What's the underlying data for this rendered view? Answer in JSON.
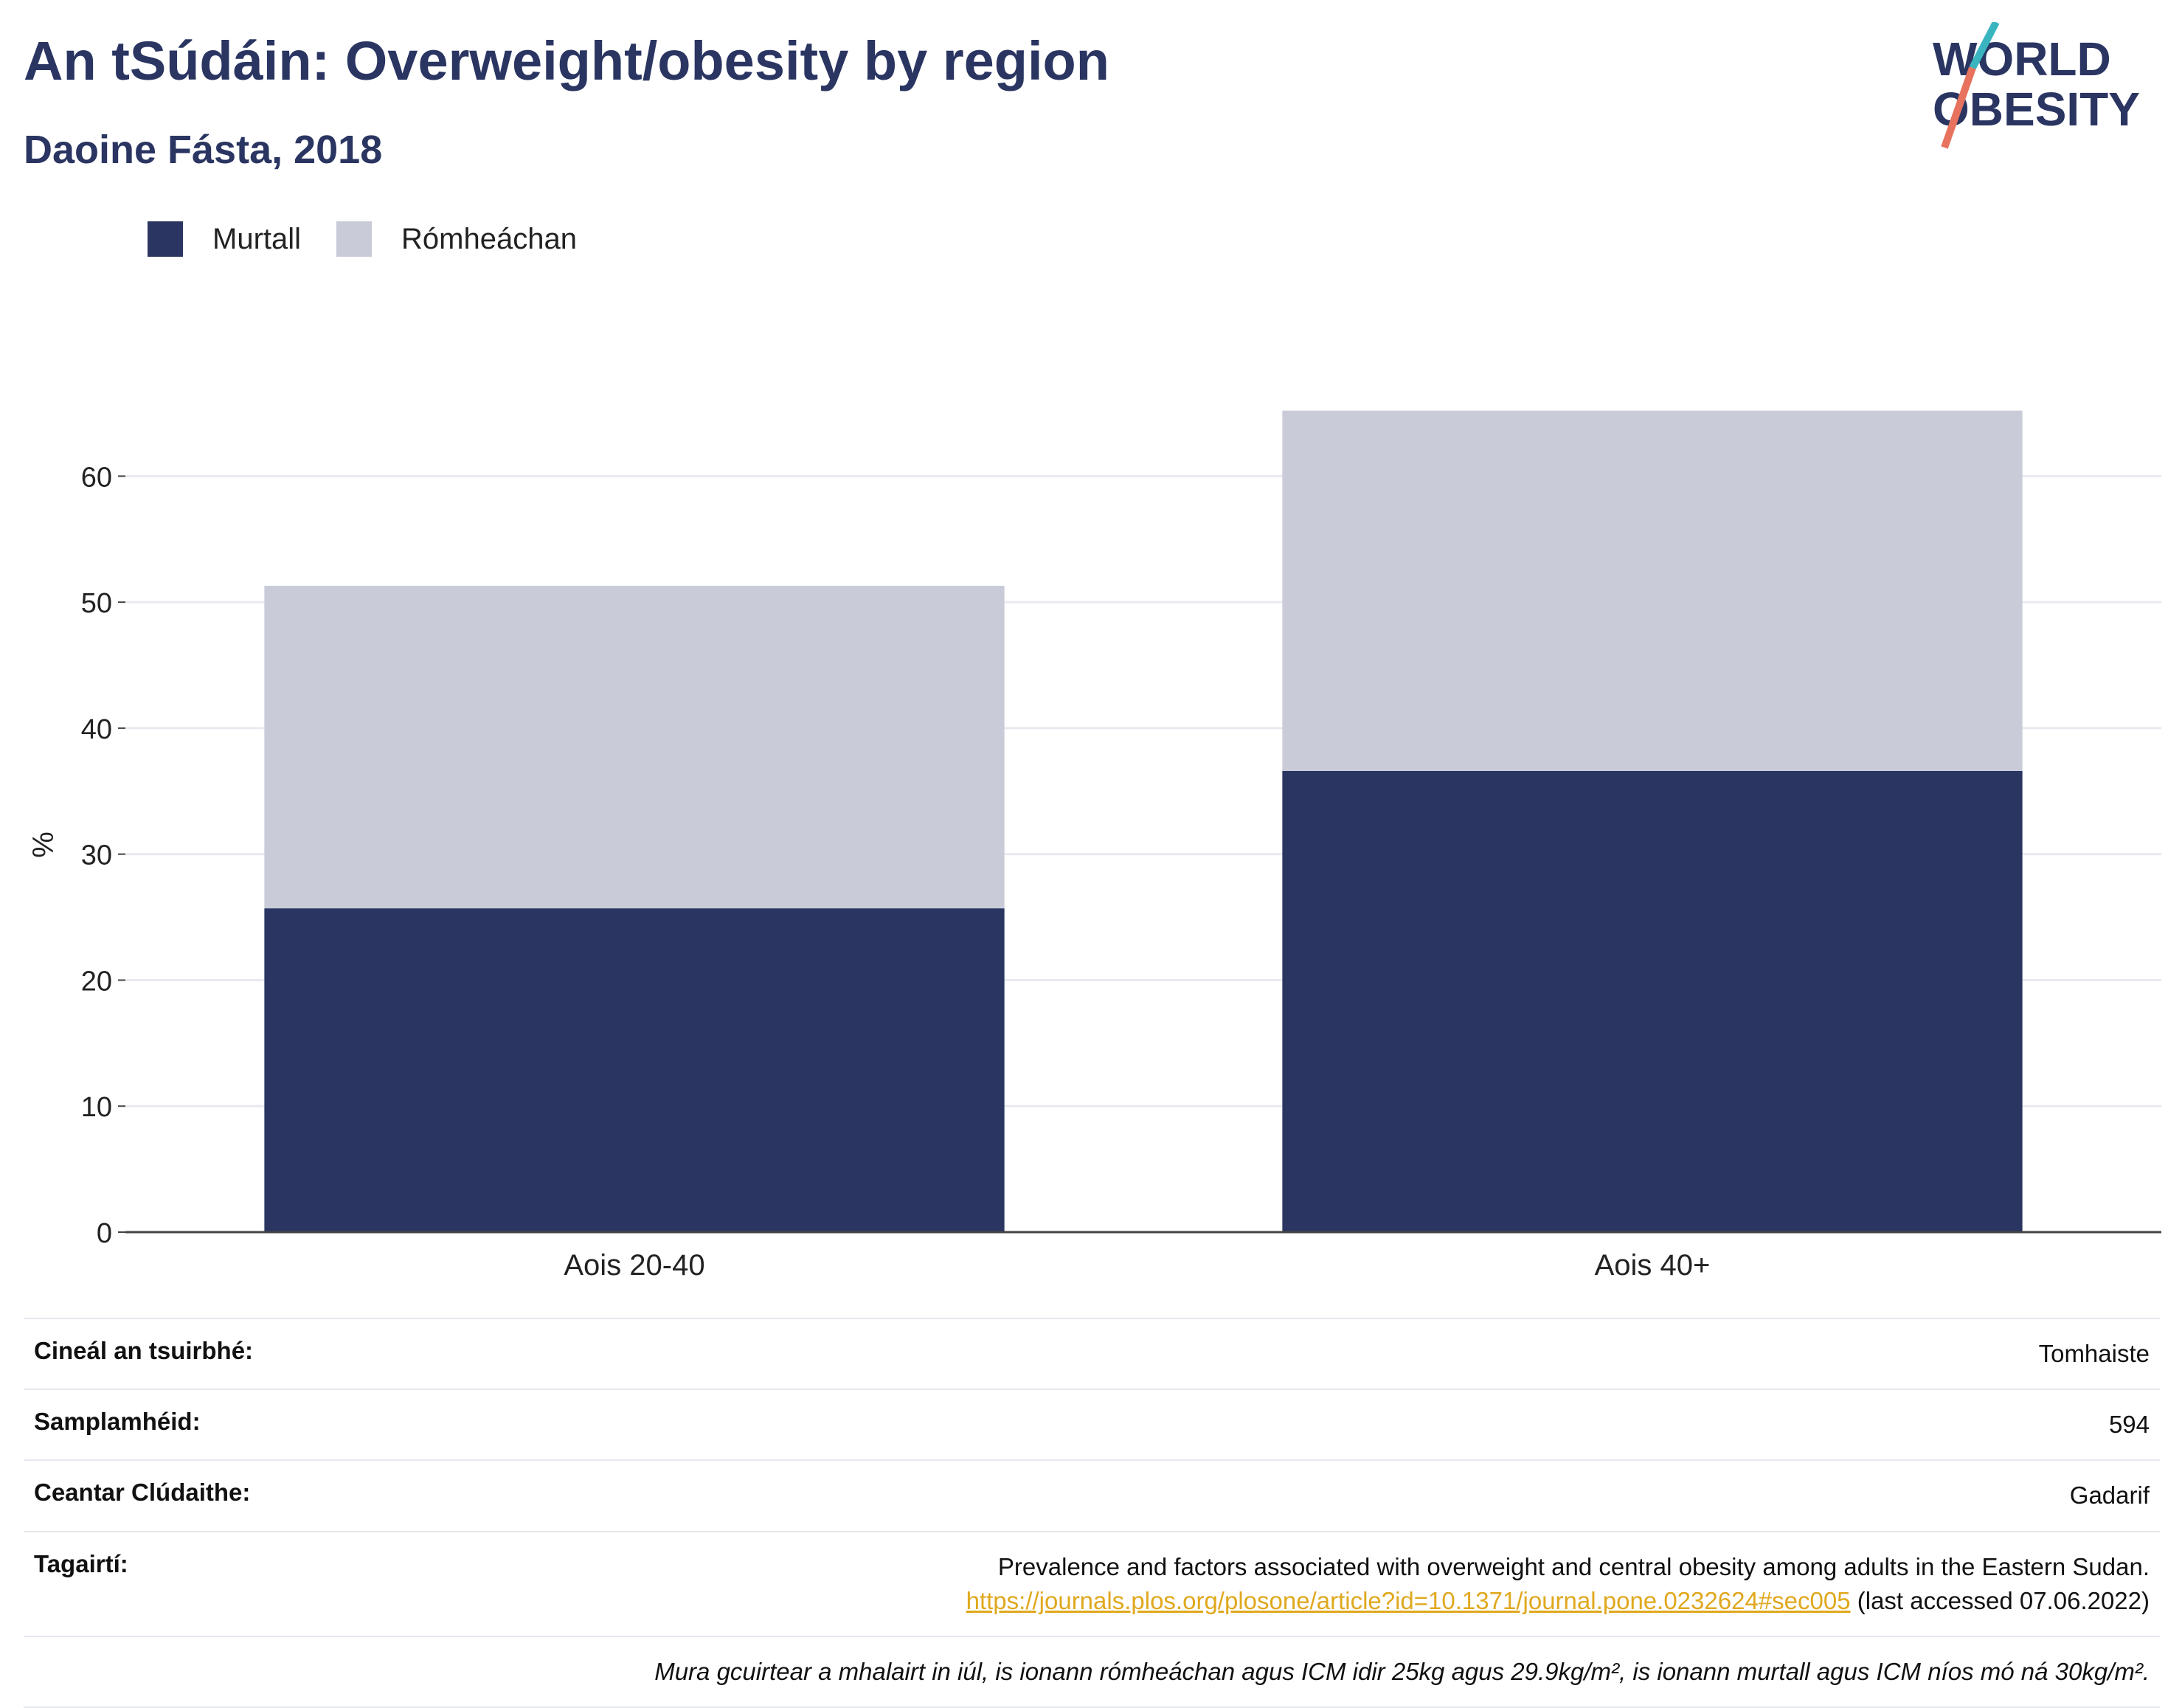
{
  "title": "An tSúdáin: Overweight/obesity by region",
  "subtitle": "Daoine Fásta, 2018",
  "logo": {
    "line1": "WORLD",
    "line2": "OBESITY"
  },
  "colors": {
    "obese": "#2a3562",
    "overweight": "#c9ccd8",
    "accent_teal": "#3ab5c0",
    "accent_red": "#e7735e",
    "link": "#e0a81e"
  },
  "chart_data": {
    "type": "bar",
    "stacked": true,
    "categories": [
      "Aois 20-40",
      "Aois 40+"
    ],
    "series": [
      {
        "name": "Murtall",
        "values": [
          25.7,
          36.6
        ]
      },
      {
        "name": "Rómheáchan",
        "values": [
          25.6,
          28.6
        ]
      }
    ],
    "ylabel": "%",
    "ylim": [
      0,
      65
    ],
    "yticks": [
      0,
      10,
      20,
      30,
      40,
      50,
      60
    ],
    "grid": true,
    "legend_position": "top-left"
  },
  "legend": [
    {
      "label": "Murtall",
      "color": "#2a3562"
    },
    {
      "label": "Rómheáchan",
      "color": "#c9ccd8"
    }
  ],
  "info": {
    "survey_type_label": "Cineál an tsuirbhé:",
    "survey_type_value": "Tomhaiste",
    "sample_label": "Samplamhéid:",
    "sample_value": "594",
    "area_label": "Ceantar Clúdaithe:",
    "area_value": "Gadarif",
    "refs_label": "Tagairtí:",
    "ref_text": "Prevalence and factors associated with overweight and central obesity among adults in the Eastern Sudan.",
    "ref_url": "https://journals.plos.org/plosone/article?id=10.1371/journal.pone.0232624#sec005",
    "ref_accessed": "(last accessed 07.06.2022)",
    "note": "Mura gcuirtear a mhalairt in iúl, is ionann rómheáchan agus ICM idir 25kg agus 29.9kg/m², is ionann murtall agus ICM níos mó ná 30kg/m²."
  }
}
